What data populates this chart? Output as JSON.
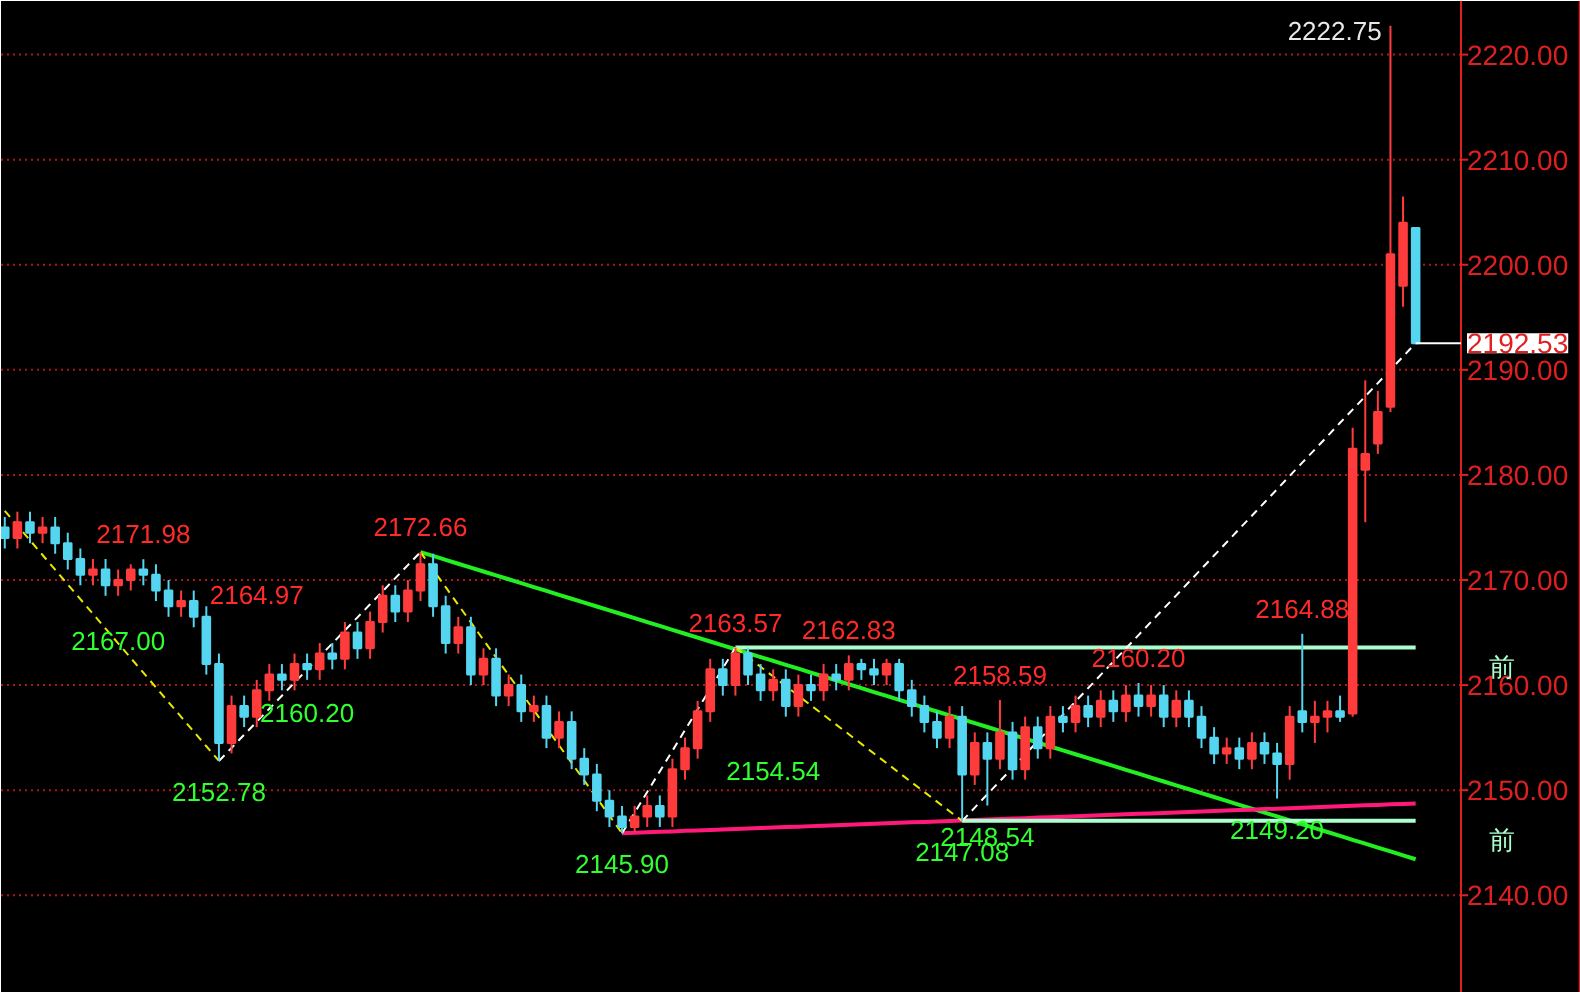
{
  "chart_data": {
    "type": "candlestick",
    "categories": [
      null,
      null,
      null,
      null,
      null,
      null,
      null,
      null,
      null,
      null,
      null,
      null,
      null,
      null,
      null,
      null,
      null,
      null,
      null,
      null,
      null,
      null,
      null,
      null,
      null,
      null,
      null,
      null,
      null,
      null,
      null,
      null,
      null,
      null,
      null,
      null,
      null,
      null,
      null,
      null,
      null,
      null,
      null,
      null,
      null,
      null,
      null,
      null,
      null,
      null,
      null,
      null,
      null,
      null,
      null,
      null,
      null,
      null,
      null,
      null,
      null,
      null,
      null,
      null,
      null,
      null,
      null,
      null,
      null,
      null,
      null,
      null,
      null,
      null,
      null,
      null,
      null,
      null,
      null,
      null,
      null,
      null,
      null,
      null,
      null,
      null,
      null,
      null,
      null,
      null,
      null,
      null,
      null,
      null,
      null,
      null,
      null,
      null,
      null,
      null,
      null,
      null,
      null,
      null,
      null,
      null,
      null,
      null,
      null,
      null,
      null,
      null,
      null
    ],
    "ohlc": [
      [
        2175.0,
        2176.0,
        2173.0,
        2174.0
      ],
      [
        2174.0,
        2176.5,
        2173.0,
        2175.5
      ],
      [
        2175.5,
        2176.5,
        2173.5,
        2174.5
      ],
      [
        2174.5,
        2176.0,
        2173.5,
        2175.0
      ],
      [
        2175.0,
        2176.0,
        2172.5,
        2173.5
      ],
      [
        2173.5,
        2174.5,
        2171.0,
        2172.0
      ],
      [
        2172.0,
        2173.0,
        2169.5,
        2170.5
      ],
      [
        2170.5,
        2172.0,
        2169.5,
        2171.0
      ],
      [
        2171.0,
        2172.0,
        2168.5,
        2169.5
      ],
      [
        2169.5,
        2171.0,
        2168.5,
        2170.0
      ],
      [
        2170.0,
        2171.5,
        2169.0,
        2171.0
      ],
      [
        2171.0,
        2171.98,
        2169.5,
        2170.5
      ],
      [
        2170.5,
        2171.5,
        2168.0,
        2169.0
      ],
      [
        2169.0,
        2170.0,
        2166.5,
        2167.5
      ],
      [
        2167.5,
        2169.0,
        2166.5,
        2168.0
      ],
      [
        2168.0,
        2169.0,
        2165.5,
        2166.5
      ],
      [
        2166.5,
        2167.5,
        2161.0,
        2162.0
      ],
      [
        2162.0,
        2163.0,
        2152.78,
        2154.5
      ],
      [
        2154.5,
        2159.0,
        2153.5,
        2158.0
      ],
      [
        2158.0,
        2159.0,
        2156.0,
        2157.0
      ],
      [
        2157.0,
        2160.5,
        2156.0,
        2159.5
      ],
      [
        2159.5,
        2162.0,
        2158.5,
        2161.0
      ],
      [
        2161.0,
        2162.0,
        2159.5,
        2160.5
      ],
      [
        2160.5,
        2163.0,
        2159.5,
        2162.0
      ],
      [
        2162.0,
        2163.0,
        2160.5,
        2161.5
      ],
      [
        2161.5,
        2164.0,
        2160.5,
        2163.0
      ],
      [
        2163.0,
        2164.0,
        2161.5,
        2162.5
      ],
      [
        2162.5,
        2166.0,
        2161.5,
        2165.0
      ],
      [
        2165.0,
        2166.0,
        2162.5,
        2163.5
      ],
      [
        2163.5,
        2167.0,
        2162.5,
        2166.0
      ],
      [
        2166.0,
        2169.5,
        2165.0,
        2168.5
      ],
      [
        2168.5,
        2169.5,
        2166.0,
        2167.0
      ],
      [
        2167.0,
        2170.0,
        2166.0,
        2169.0
      ],
      [
        2169.0,
        2172.66,
        2168.0,
        2171.5
      ],
      [
        2171.5,
        2172.5,
        2166.5,
        2167.5
      ],
      [
        2167.5,
        2168.5,
        2163.0,
        2164.0
      ],
      [
        2164.0,
        2166.5,
        2163.0,
        2165.5
      ],
      [
        2165.5,
        2166.5,
        2160.0,
        2161.0
      ],
      [
        2161.0,
        2163.5,
        2160.0,
        2162.5
      ],
      [
        2162.5,
        2163.5,
        2158.0,
        2159.0
      ],
      [
        2159.0,
        2161.0,
        2158.0,
        2160.0
      ],
      [
        2160.0,
        2161.0,
        2156.5,
        2157.5
      ],
      [
        2157.5,
        2159.0,
        2156.5,
        2158.0
      ],
      [
        2158.0,
        2159.0,
        2154.0,
        2155.0
      ],
      [
        2155.0,
        2157.5,
        2154.0,
        2156.5
      ],
      [
        2156.5,
        2157.5,
        2152.0,
        2153.0
      ],
      [
        2153.0,
        2154.0,
        2150.5,
        2151.5
      ],
      [
        2151.5,
        2152.5,
        2148.0,
        2149.0
      ],
      [
        2149.0,
        2150.0,
        2146.5,
        2147.5
      ],
      [
        2147.5,
        2148.5,
        2145.9,
        2146.5
      ],
      [
        2146.5,
        2148.5,
        2146.0,
        2147.5
      ],
      [
        2147.5,
        2149.5,
        2146.5,
        2148.5
      ],
      [
        2148.5,
        2149.5,
        2146.5,
        2147.5
      ],
      [
        2147.5,
        2153.0,
        2146.5,
        2152.0
      ],
      [
        2152.0,
        2155.0,
        2151.0,
        2154.0
      ],
      [
        2154.0,
        2158.5,
        2153.0,
        2157.5
      ],
      [
        2157.5,
        2162.5,
        2156.5,
        2161.5
      ],
      [
        2161.5,
        2162.5,
        2159.0,
        2160.0
      ],
      [
        2160.0,
        2163.57,
        2159.0,
        2163.0
      ],
      [
        2163.0,
        2163.5,
        2160.0,
        2161.0
      ],
      [
        2161.0,
        2162.0,
        2158.5,
        2159.5
      ],
      [
        2159.5,
        2161.5,
        2158.5,
        2160.5
      ],
      [
        2160.5,
        2161.5,
        2157.0,
        2158.0
      ],
      [
        2158.0,
        2161.0,
        2157.0,
        2160.0
      ],
      [
        2160.0,
        2161.0,
        2158.5,
        2159.5
      ],
      [
        2159.5,
        2162.0,
        2158.5,
        2161.0
      ],
      [
        2161.0,
        2162.0,
        2159.5,
        2160.5
      ],
      [
        2160.5,
        2162.83,
        2159.5,
        2162.0
      ],
      [
        2162.0,
        2162.5,
        2160.5,
        2161.5
      ],
      [
        2161.5,
        2162.5,
        2160.0,
        2161.0
      ],
      [
        2161.0,
        2162.5,
        2160.0,
        2162.0
      ],
      [
        2162.0,
        2162.5,
        2158.5,
        2159.5
      ],
      [
        2159.5,
        2160.5,
        2157.0,
        2158.0
      ],
      [
        2158.0,
        2159.0,
        2155.5,
        2156.5
      ],
      [
        2156.5,
        2157.5,
        2154.0,
        2155.0
      ],
      [
        2155.0,
        2158.0,
        2154.0,
        2157.0
      ],
      [
        2157.0,
        2158.0,
        2147.08,
        2151.5
      ],
      [
        2151.5,
        2155.5,
        2150.5,
        2154.5
      ],
      [
        2154.5,
        2155.5,
        2148.54,
        2153.0
      ],
      [
        2153.0,
        2158.59,
        2152.0,
        2155.5
      ],
      [
        2155.5,
        2156.5,
        2151.0,
        2152.0
      ],
      [
        2152.0,
        2157.0,
        2151.0,
        2156.0
      ],
      [
        2156.0,
        2157.0,
        2153.0,
        2154.0
      ],
      [
        2154.0,
        2158.0,
        2153.0,
        2157.0
      ],
      [
        2157.0,
        2158.0,
        2155.5,
        2156.5
      ],
      [
        2156.5,
        2159.0,
        2155.5,
        2158.0
      ],
      [
        2158.0,
        2159.0,
        2156.0,
        2157.0
      ],
      [
        2157.0,
        2159.5,
        2156.0,
        2158.5
      ],
      [
        2158.5,
        2159.5,
        2156.5,
        2157.5
      ],
      [
        2157.5,
        2160.0,
        2156.5,
        2159.0
      ],
      [
        2159.0,
        2160.2,
        2157.0,
        2158.0
      ],
      [
        2158.0,
        2160.0,
        2157.0,
        2159.0
      ],
      [
        2159.0,
        2160.0,
        2156.0,
        2157.0
      ],
      [
        2157.0,
        2159.5,
        2156.0,
        2158.5
      ],
      [
        2158.5,
        2159.5,
        2156.0,
        2157.0
      ],
      [
        2157.0,
        2158.0,
        2154.0,
        2155.0
      ],
      [
        2155.0,
        2156.0,
        2152.5,
        2153.5
      ],
      [
        2153.5,
        2155.0,
        2152.5,
        2154.0
      ],
      [
        2154.0,
        2155.0,
        2152.0,
        2153.0
      ],
      [
        2153.0,
        2155.5,
        2152.0,
        2154.5
      ],
      [
        2154.5,
        2155.5,
        2152.5,
        2153.5
      ],
      [
        2153.5,
        2154.5,
        2149.2,
        2152.5
      ],
      [
        2152.5,
        2158.0,
        2151.0,
        2157.0
      ],
      [
        2157.5,
        2164.88,
        2155.5,
        2156.5
      ],
      [
        2156.5,
        2158.5,
        2154.5,
        2157.0
      ],
      [
        2157.0,
        2158.5,
        2155.5,
        2157.5
      ],
      [
        2157.5,
        2159.0,
        2156.5,
        2157.0
      ],
      [
        2157.3,
        2184.5,
        2157.0,
        2182.5
      ],
      [
        2180.5,
        2189.0,
        2175.5,
        2182.0
      ],
      [
        2183.0,
        2188.0,
        2182.0,
        2186.0
      ],
      [
        2186.5,
        2222.75,
        2186.0,
        2201.0
      ],
      [
        2198.0,
        2206.5,
        2196.0,
        2204.0
      ],
      [
        2203.5,
        2203.5,
        2192.53,
        2192.53
      ]
    ],
    "colors": [
      "#54d5f0",
      "#ff3b3b",
      "#54d5f0",
      "#ff3b3b",
      "#54d5f0",
      "#54d5f0",
      "#54d5f0",
      "#ff3b3b",
      "#54d5f0",
      "#ff3b3b",
      "#ff3b3b",
      "#54d5f0",
      "#54d5f0",
      "#54d5f0",
      "#ff3b3b",
      "#54d5f0",
      "#54d5f0",
      "#54d5f0",
      "#ff3b3b",
      "#54d5f0",
      "#ff3b3b",
      "#ff3b3b",
      "#54d5f0",
      "#ff3b3b",
      "#54d5f0",
      "#ff3b3b",
      "#54d5f0",
      "#ff3b3b",
      "#54d5f0",
      "#ff3b3b",
      "#ff3b3b",
      "#54d5f0",
      "#ff3b3b",
      "#ff3b3b",
      "#54d5f0",
      "#54d5f0",
      "#ff3b3b",
      "#54d5f0",
      "#ff3b3b",
      "#54d5f0",
      "#ff3b3b",
      "#54d5f0",
      "#ff3b3b",
      "#54d5f0",
      "#ff3b3b",
      "#54d5f0",
      "#54d5f0",
      "#54d5f0",
      "#54d5f0",
      "#54d5f0",
      "#ff3b3b",
      "#ff3b3b",
      "#54d5f0",
      "#ff3b3b",
      "#ff3b3b",
      "#ff3b3b",
      "#ff3b3b",
      "#54d5f0",
      "#ff3b3b",
      "#54d5f0",
      "#54d5f0",
      "#ff3b3b",
      "#54d5f0",
      "#ff3b3b",
      "#54d5f0",
      "#ff3b3b",
      "#54d5f0",
      "#ff3b3b",
      "#54d5f0",
      "#54d5f0",
      "#ff3b3b",
      "#54d5f0",
      "#54d5f0",
      "#54d5f0",
      "#54d5f0",
      "#ff3b3b",
      "#54d5f0",
      "#ff3b3b",
      "#54d5f0",
      "#ff3b3b",
      "#54d5f0",
      "#ff3b3b",
      "#54d5f0",
      "#ff3b3b",
      "#54d5f0",
      "#ff3b3b",
      "#54d5f0",
      "#ff3b3b",
      "#54d5f0",
      "#ff3b3b",
      "#54d5f0",
      "#ff3b3b",
      "#54d5f0",
      "#ff3b3b",
      "#54d5f0",
      "#54d5f0",
      "#54d5f0",
      "#ff3b3b",
      "#54d5f0",
      "#ff3b3b",
      "#54d5f0",
      "#54d5f0",
      "#ff3b3b",
      "#54d5f0",
      "#ff3b3b",
      "#ff3b3b",
      "#54d5f0",
      "#ff3b3b",
      "#ff3b3b",
      "#ff3b3b",
      "#ff3b3b",
      "#ff3b3b",
      "#54d5f0"
    ],
    "series": [
      {
        "type": "line",
        "color": "#22ee22",
        "values": [
          null,
          null,
          null,
          null,
          null,
          null,
          null,
          null,
          null,
          null,
          null,
          null,
          null,
          null,
          null,
          null,
          null,
          null,
          null,
          null,
          null,
          null,
          null,
          null,
          null,
          null,
          null,
          null,
          null,
          null,
          null,
          null,
          null,
          2172.66,
          2172.29,
          2171.92,
          2171.55,
          2171.18,
          2170.81,
          2170.44,
          2170.07,
          2169.7,
          2169.33,
          2168.96,
          2168.59,
          2168.22,
          2167.85,
          2167.48,
          2167.11,
          2166.74,
          2166.37,
          2166.0,
          2165.63,
          2165.26,
          2164.89,
          2164.52,
          2164.15,
          2163.78,
          2163.41,
          2163.04,
          2162.67,
          2162.3,
          2161.93,
          2161.56,
          2161.19,
          2160.82,
          2160.45,
          2160.08,
          2159.71,
          2159.34,
          2158.97,
          2158.6,
          2158.23,
          2157.86,
          2157.49,
          2157.12,
          2156.75,
          2156.38,
          2156.01,
          2155.64,
          2155.27,
          2154.9,
          2154.53,
          2154.16,
          2153.79,
          2153.42,
          2153.05,
          2152.68,
          2152.31,
          2151.94,
          2151.57,
          2151.2,
          2150.83,
          2150.46,
          2150.09,
          2149.72,
          2149.35,
          2148.98,
          2148.61,
          2148.24,
          2147.87,
          2147.5,
          2147.13,
          2146.76,
          2146.39,
          2146.02,
          2145.65,
          2145.28,
          2144.91,
          2144.54,
          2144.17,
          2143.8,
          2143.43
        ]
      },
      {
        "type": "line",
        "color": "#ff1a7a",
        "values": [
          null,
          null,
          null,
          null,
          null,
          null,
          null,
          null,
          null,
          null,
          null,
          null,
          null,
          null,
          null,
          null,
          null,
          null,
          null,
          null,
          null,
          null,
          null,
          null,
          null,
          null,
          null,
          null,
          null,
          null,
          null,
          null,
          null,
          null,
          null,
          null,
          null,
          null,
          null,
          null,
          null,
          null,
          null,
          null,
          null,
          null,
          null,
          null,
          null,
          2145.9,
          2145.95,
          2145.99,
          2146.04,
          2146.08,
          2146.13,
          2146.17,
          2146.22,
          2146.26,
          2146.31,
          2146.35,
          2146.4,
          2146.44,
          2146.49,
          2146.53,
          2146.58,
          2146.62,
          2146.67,
          2146.71,
          2146.76,
          2146.8,
          2146.85,
          2146.89,
          2146.94,
          2146.98,
          2147.03,
          2147.07,
          2147.12,
          2147.16,
          2147.21,
          2147.25,
          2147.3,
          2147.34,
          2147.39,
          2147.43,
          2147.48,
          2147.52,
          2147.57,
          2147.61,
          2147.66,
          2147.7,
          2147.75,
          2147.79,
          2147.84,
          2147.88,
          2147.93,
          2147.97,
          2148.02,
          2148.06,
          2148.11,
          2148.15,
          2148.2,
          2148.24,
          2148.29,
          2148.33,
          2148.38,
          2148.42,
          2148.47,
          2148.51,
          2148.56,
          2148.6,
          2148.65,
          2148.69,
          2148.74
        ]
      },
      {
        "type": "line",
        "name": "前",
        "color": "#aaffcc",
        "values": [
          null,
          null,
          null,
          null,
          null,
          null,
          null,
          null,
          null,
          null,
          null,
          null,
          null,
          null,
          null,
          null,
          null,
          null,
          null,
          null,
          null,
          null,
          null,
          null,
          null,
          null,
          null,
          null,
          null,
          null,
          null,
          null,
          null,
          null,
          null,
          null,
          null,
          null,
          null,
          null,
          null,
          null,
          null,
          null,
          null,
          null,
          null,
          null,
          null,
          null,
          null,
          null,
          null,
          null,
          null,
          null,
          null,
          null,
          2163.57,
          2163.57,
          2163.57,
          2163.57,
          2163.57,
          2163.57,
          2163.57,
          2163.57,
          2163.57,
          2163.57,
          2163.57,
          2163.57,
          2163.57,
          2163.57,
          2163.57,
          2163.57,
          2163.57,
          2163.57,
          2163.57,
          2163.57,
          2163.57,
          2163.57,
          2163.57,
          2163.57,
          2163.57,
          2163.57,
          2163.57,
          2163.57,
          2163.57,
          2163.57,
          2163.57,
          2163.57,
          2163.57,
          2163.57,
          2163.57,
          2163.57,
          2163.57,
          2163.57,
          2163.57,
          2163.57,
          2163.57,
          2163.57,
          2163.57,
          2163.57,
          2163.57,
          2163.57,
          2163.57,
          2163.57,
          2163.57,
          2163.57,
          2163.57,
          2163.57,
          2163.57,
          2163.57,
          2163.57
        ]
      },
      {
        "type": "line",
        "name": "前",
        "color": "#aaffcc",
        "values": [
          null,
          null,
          null,
          null,
          null,
          null,
          null,
          null,
          null,
          null,
          null,
          null,
          null,
          null,
          null,
          null,
          null,
          null,
          null,
          null,
          null,
          null,
          null,
          null,
          null,
          null,
          null,
          null,
          null,
          null,
          null,
          null,
          null,
          null,
          null,
          null,
          null,
          null,
          null,
          null,
          null,
          null,
          null,
          null,
          null,
          null,
          null,
          null,
          null,
          null,
          null,
          null,
          null,
          null,
          null,
          null,
          null,
          null,
          null,
          null,
          null,
          null,
          null,
          null,
          null,
          null,
          null,
          null,
          null,
          null,
          null,
          null,
          null,
          null,
          null,
          null,
          2147.08,
          2147.08,
          2147.08,
          2147.08,
          2147.08,
          2147.08,
          2147.08,
          2147.08,
          2147.08,
          2147.08,
          2147.08,
          2147.08,
          2147.08,
          2147.08,
          2147.08,
          2147.08,
          2147.08,
          2147.08,
          2147.08,
          2147.08,
          2147.08,
          2147.08,
          2147.08,
          2147.08,
          2147.08,
          2147.08,
          2147.08,
          2147.08,
          2147.08,
          2147.08,
          2147.08,
          2147.08,
          2147.08,
          2147.08,
          2147.08,
          2147.08,
          2147.08
        ]
      },
      {
        "type": "line",
        "color": "#e8e800",
        "line_style": "dashed",
        "values": [
          2176.58,
          2175.18,
          2173.78,
          2172.38,
          2170.98,
          2169.58,
          2168.18,
          2166.78,
          2165.38,
          2163.98,
          2162.58,
          2161.18,
          2159.78,
          2158.38,
          2156.98,
          2155.58,
          2154.18,
          2152.78,
          null,
          null,
          null,
          null,
          null,
          null,
          null,
          null,
          null,
          null,
          null,
          null,
          null,
          null,
          null,
          2172.66,
          2170.99,
          2169.32,
          2167.64,
          2165.97,
          2164.3,
          2162.63,
          2160.95,
          2159.28,
          2157.61,
          2155.94,
          2154.26,
          2152.59,
          2150.92,
          2149.25,
          2147.57,
          2145.9,
          null,
          null,
          null,
          null,
          null,
          null,
          null,
          null,
          2163.57,
          2162.65,
          2161.74,
          2160.82,
          2159.91,
          2158.99,
          2158.07,
          2157.16,
          2156.24,
          2155.33,
          2154.41,
          2153.49,
          2152.58,
          2151.66,
          2150.74,
          2149.83,
          2148.91,
          2148.0,
          2147.08,
          null,
          null,
          null,
          null,
          null,
          null,
          null,
          null,
          null,
          null,
          null,
          null,
          null,
          null,
          null,
          null,
          null,
          null,
          null,
          null,
          null,
          null,
          null,
          null,
          null,
          null,
          null,
          null,
          null,
          null,
          null,
          null,
          null,
          null,
          null,
          null
        ]
      },
      {
        "type": "line",
        "color": "#ffffff",
        "line_style": "dashed",
        "values": [
          null,
          null,
          null,
          null,
          null,
          null,
          null,
          null,
          null,
          null,
          null,
          null,
          null,
          null,
          null,
          null,
          null,
          2152.78,
          2154.02,
          2155.27,
          2156.51,
          2157.75,
          2158.99,
          2160.24,
          2161.48,
          2162.72,
          2163.96,
          2165.21,
          2166.45,
          2167.69,
          2168.93,
          2170.18,
          2171.42,
          2172.66,
          null,
          null,
          null,
          null,
          null,
          null,
          null,
          null,
          null,
          null,
          null,
          null,
          null,
          null,
          null,
          2145.9,
          2147.86,
          2149.83,
          2151.79,
          2153.75,
          2155.72,
          2157.68,
          2159.64,
          2161.61,
          2163.57,
          null,
          null,
          null,
          null,
          null,
          null,
          null,
          null,
          null,
          null,
          null,
          null,
          null,
          null,
          null,
          null,
          null,
          2147.08,
          2148.34,
          2149.61,
          2150.87,
          2152.13,
          2153.39,
          2154.66,
          2155.92,
          2157.18,
          2158.44,
          2159.71,
          2160.97,
          2162.23,
          2163.49,
          2164.76,
          2166.02,
          2167.28,
          2168.54,
          2169.81,
          2171.07,
          2172.33,
          2173.59,
          2174.86,
          2176.12,
          2177.38,
          2178.64,
          2179.91,
          2181.17,
          2182.43,
          2183.69,
          2184.96,
          2186.22,
          2187.48,
          2188.74,
          2190.01,
          2191.27,
          2192.53
        ]
      }
    ],
    "annotations": [
      {
        "text": "2171.98",
        "y": 2171.98
      },
      "2164.97",
      "2167.00",
      "2160.20",
      "2154.54",
      "2222.75",
      {
        "text": "2152.78",
        "y": 2152.78
      },
      {
        "text": "2172.66",
        "y": 2172.66
      },
      {
        "text": "2163.57",
        "y": 2163.57
      },
      {
        "text": "2162.83",
        "y": 2162.83
      },
      {
        "text": "2158.59",
        "y": 2158.59
      },
      {
        "text": "2160.20",
        "y": 2160.2
      },
      {
        "text": "2164.88",
        "y": 2164.88
      },
      {
        "text": "2145.90",
        "y": 2145.9
      },
      {
        "text": "2147.08",
        "y": 2147.08
      },
      {
        "text": "2148.54",
        "y": 2148.54
      },
      {
        "text": "2149.20",
        "y": 2149.2
      }
    ],
    "ref_lines": [
      {
        "axis": "y",
        "value": 2192.53,
        "label": "2192.53",
        "color": "#ffffff"
      }
    ],
    "ylim": [
      2130.7,
      2225.1
    ],
    "yticks": [
      {
        "value": 2140,
        "label": "2140.00"
      },
      {
        "value": 2150,
        "label": "2150.00"
      },
      {
        "value": 2160,
        "label": "2160.00"
      },
      {
        "value": 2170,
        "label": "2170.00"
      },
      {
        "value": 2180,
        "label": "2180.00"
      },
      {
        "value": 2190,
        "label": "2190.00"
      },
      {
        "value": 2200,
        "label": "2200.00"
      },
      {
        "value": 2210,
        "label": "2210.00"
      },
      {
        "value": 2220,
        "label": "2220.00"
      }
    ],
    "tick_labels": "y",
    "grid": "y",
    "marker": "none"
  }
}
